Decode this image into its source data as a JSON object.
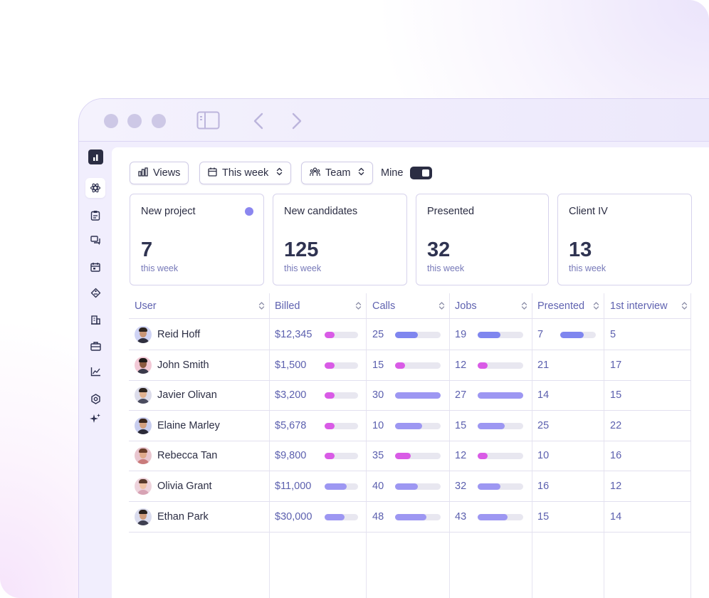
{
  "toolbar": {
    "views_label": "Views",
    "period_label": "This week",
    "team_label": "Team",
    "mine_label": "Mine",
    "mine_enabled": true
  },
  "cards": [
    {
      "title": "New project",
      "value": "7",
      "sub": "this week",
      "has_dot": true
    },
    {
      "title": "New candidates",
      "value": "125",
      "sub": "this week"
    },
    {
      "title": "Presented",
      "value": "32",
      "sub": "this week"
    },
    {
      "title": "Client IV",
      "value": "13",
      "sub": "this week"
    }
  ],
  "columns": [
    "User",
    "Billed",
    "Calls",
    "Jobs",
    "Presented",
    "1st interview"
  ],
  "colors": {
    "bar_purple": "#9d97f2",
    "bar_blue": "#7f86ef",
    "bar_pink": "#d95be6",
    "track": "#e8e7f0",
    "accent_dot": "#8b86ef"
  },
  "rows": [
    {
      "user": "Reid Hoff",
      "billed": "$12,345",
      "billed_bar": 0.3,
      "billed_color": "pink",
      "calls": "25",
      "calls_bar": 0.5,
      "calls_color": "blue",
      "jobs": "19",
      "jobs_bar": 0.5,
      "jobs_color": "blue",
      "presented": "7",
      "presented_bar": 0.65,
      "presented_color": "blue",
      "interview": "5"
    },
    {
      "user": "John Smith",
      "billed": "$1,500",
      "billed_bar": 0.3,
      "billed_color": "pink",
      "calls": "15",
      "calls_bar": 0.22,
      "calls_color": "pink",
      "jobs": "12",
      "jobs_bar": 0.22,
      "jobs_color": "pink",
      "presented": "21",
      "interview": "17"
    },
    {
      "user": "Javier Olivan",
      "billed": "$3,200",
      "billed_bar": 0.3,
      "billed_color": "pink",
      "calls": "30",
      "calls_bar": 1.0,
      "calls_color": "purple",
      "jobs": "27",
      "jobs_bar": 1.0,
      "jobs_color": "purple",
      "presented": "14",
      "interview": "15"
    },
    {
      "user": "Elaine Marley",
      "billed": "$5,678",
      "billed_bar": 0.3,
      "billed_color": "pink",
      "calls": "10",
      "calls_bar": 0.6,
      "calls_color": "purple",
      "jobs": "15",
      "jobs_bar": 0.6,
      "jobs_color": "purple",
      "presented": "25",
      "interview": "22"
    },
    {
      "user": "Rebecca Tan",
      "billed": "$9,800",
      "billed_bar": 0.3,
      "billed_color": "pink",
      "calls": "35",
      "calls_bar": 0.35,
      "calls_color": "pink",
      "jobs": "12",
      "jobs_bar": 0.22,
      "jobs_color": "pink",
      "presented": "10",
      "interview": "16"
    },
    {
      "user": "Olivia Grant",
      "billed": "$11,000",
      "billed_bar": 0.65,
      "billed_color": "purple",
      "calls": "40",
      "calls_bar": 0.5,
      "calls_color": "purple",
      "jobs": "32",
      "jobs_bar": 0.5,
      "jobs_color": "purple",
      "presented": "16",
      "interview": "12"
    },
    {
      "user": "Ethan Park",
      "billed": "$30,000",
      "billed_bar": 0.6,
      "billed_color": "purple",
      "calls": "48",
      "calls_bar": 0.68,
      "calls_color": "purple",
      "jobs": "43",
      "jobs_bar": 0.65,
      "jobs_color": "purple",
      "presented": "15",
      "interview": "14"
    }
  ],
  "avatars": [
    {
      "bg": "#cfd3f4",
      "skin": "#c99677",
      "hair": "#2d241f",
      "shirt": "#2f2f3e"
    },
    {
      "bg": "#f2c9d6",
      "skin": "#8c5a40",
      "hair": "#1f1a18",
      "shirt": "#3a3a4a"
    },
    {
      "bg": "#dcdcea",
      "skin": "#e0b291",
      "hair": "#2d2520",
      "shirt": "#4a4c5e"
    },
    {
      "bg": "#c8cdee",
      "skin": "#d3a080",
      "hair": "#3b261d",
      "shirt": "#2a2a38"
    },
    {
      "bg": "#e9c6cf",
      "skin": "#e0aa8c",
      "hair": "#6b3d2a",
      "shirt": "#c97b7b"
    },
    {
      "bg": "#eed3dc",
      "skin": "#efc2a6",
      "hair": "#5a3a2c",
      "shirt": "#d7a3b4"
    },
    {
      "bg": "#dadcee",
      "skin": "#cf9c7c",
      "hair": "#2a211c",
      "shirt": "#3e3f50"
    }
  ],
  "sidebar": {
    "items": [
      "logo-icon",
      "ai-flower-icon",
      "clipboard-icon",
      "chat-icon",
      "calendar-icon",
      "tag-icon",
      "building-icon",
      "briefcase-icon",
      "chart-icon",
      "settings-icon",
      "sparkle-icon"
    ]
  }
}
